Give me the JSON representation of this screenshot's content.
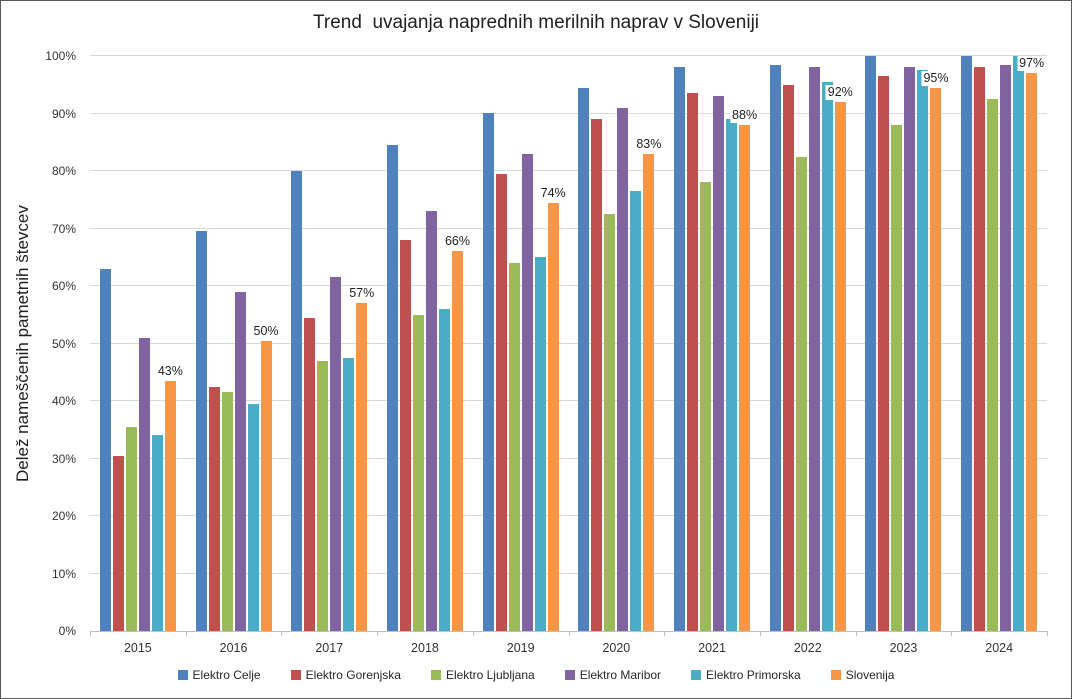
{
  "chart_data": {
    "type": "bar",
    "title": "Trend  uvajanja naprednih merilnih naprav v Sloveniji",
    "xlabel": "",
    "ylabel": "Delež nameščenih pametnih števcev",
    "ylim": [
      0,
      100
    ],
    "y_ticks": [
      "0%",
      "10%",
      "20%",
      "30%",
      "40%",
      "50%",
      "60%",
      "70%",
      "80%",
      "90%",
      "100%"
    ],
    "grid": true,
    "legend_position": "bottom",
    "categories": [
      "2015",
      "2016",
      "2017",
      "2018",
      "2019",
      "2020",
      "2021",
      "2022",
      "2023",
      "2024"
    ],
    "series": [
      {
        "name": "Elektro Celje",
        "color": "#4F81BD",
        "values": [
          63,
          69.5,
          80,
          84.5,
          90,
          94.5,
          98,
          98.5,
          100,
          100
        ]
      },
      {
        "name": "Elektro Gorenjska",
        "color": "#C0504D",
        "values": [
          30.5,
          42.5,
          54.5,
          68,
          79.5,
          89,
          93.5,
          95,
          96.5,
          98
        ]
      },
      {
        "name": "Elektro Ljubljana",
        "color": "#9BBB59",
        "values": [
          35.5,
          41.5,
          47,
          55,
          64,
          72.5,
          78,
          82.5,
          88,
          92.5
        ]
      },
      {
        "name": "Elektro Maribor",
        "color": "#8064A2",
        "values": [
          51,
          59,
          61.5,
          73,
          83,
          91,
          93,
          98,
          98,
          98.5
        ]
      },
      {
        "name": "Elektro Primorska",
        "color": "#4BACC6",
        "values": [
          34,
          39.5,
          47.5,
          56,
          65,
          76.5,
          89,
          95.5,
          97.5,
          100
        ]
      },
      {
        "name": "Slovenija",
        "color": "#F79646",
        "values": [
          43.5,
          50.5,
          57,
          66,
          74.5,
          83,
          88,
          92,
          94.5,
          97
        ],
        "labels": [
          "43%",
          "50%",
          "57%",
          "66%",
          "74%",
          "83%",
          "88%",
          "92%",
          "95%",
          "97%"
        ]
      }
    ]
  }
}
